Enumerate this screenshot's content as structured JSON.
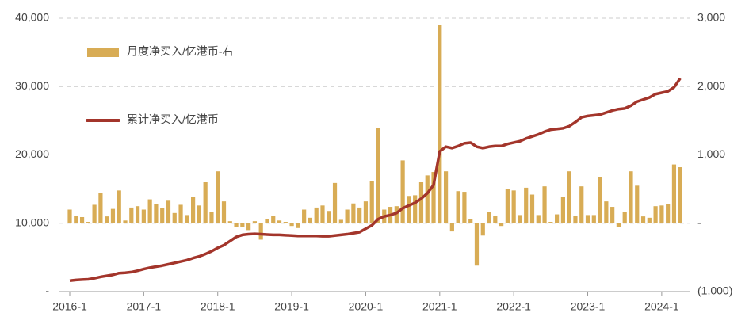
{
  "chart_data": {
    "type": "bar-line",
    "categories": [
      "2016-1",
      null,
      null,
      null,
      null,
      null,
      null,
      null,
      null,
      null,
      null,
      null,
      "2017-1",
      null,
      null,
      null,
      null,
      null,
      null,
      null,
      null,
      null,
      null,
      null,
      "2018-1",
      null,
      null,
      null,
      null,
      null,
      null,
      null,
      null,
      null,
      null,
      null,
      "2019-1",
      null,
      null,
      null,
      null,
      null,
      null,
      null,
      null,
      null,
      null,
      null,
      "2020-1",
      null,
      null,
      null,
      null,
      null,
      null,
      null,
      null,
      null,
      null,
      null,
      "2021-1",
      null,
      null,
      null,
      null,
      null,
      null,
      null,
      null,
      null,
      null,
      null,
      "2022-1",
      null,
      null,
      null,
      null,
      null,
      null,
      null,
      null,
      null,
      null,
      null,
      "2023-1",
      null,
      null,
      null,
      null,
      null,
      null,
      null,
      null,
      null,
      null,
      null,
      "2024-1",
      null,
      null,
      null
    ],
    "series": [
      {
        "name": "月度净买入/亿港币-右",
        "type": "bar",
        "axis": "y2",
        "color": "#d8ac55",
        "values": [
          200,
          110,
          90,
          20,
          270,
          440,
          100,
          210,
          480,
          40,
          230,
          250,
          200,
          350,
          280,
          220,
          330,
          150,
          270,
          120,
          380,
          260,
          600,
          170,
          760,
          320,
          30,
          -50,
          -50,
          -100,
          30,
          -240,
          60,
          110,
          40,
          20,
          -40,
          -70,
          200,
          80,
          230,
          260,
          180,
          590,
          50,
          200,
          290,
          230,
          320,
          620,
          1400,
          200,
          240,
          250,
          920,
          400,
          410,
          600,
          700,
          750,
          2900,
          760,
          -120,
          470,
          460,
          60,
          -620,
          -180,
          170,
          110,
          -40,
          500,
          480,
          120,
          520,
          420,
          120,
          540,
          20,
          130,
          380,
          760,
          110,
          540,
          120,
          120,
          680,
          320,
          240,
          -60,
          160,
          760,
          550,
          100,
          80,
          250,
          260,
          280,
          860,
          820
        ]
      },
      {
        "name": "累计净买入/亿港币",
        "type": "line",
        "axis": "y",
        "color": "#a3352b",
        "values": [
          1600,
          1700,
          1750,
          1800,
          1950,
          2150,
          2300,
          2450,
          2700,
          2750,
          2850,
          3050,
          3300,
          3500,
          3650,
          3800,
          4000,
          4200,
          4400,
          4600,
          4900,
          5150,
          5500,
          5900,
          6400,
          6800,
          7400,
          8000,
          8300,
          8400,
          8450,
          8400,
          8350,
          8300,
          8300,
          8250,
          8200,
          8150,
          8150,
          8150,
          8150,
          8100,
          8100,
          8200,
          8300,
          8400,
          8550,
          8700,
          9200,
          9700,
          10600,
          11000,
          11200,
          11500,
          12200,
          12600,
          13000,
          13600,
          14400,
          15600,
          20500,
          21200,
          21000,
          21300,
          21700,
          21800,
          21200,
          21000,
          21200,
          21300,
          21300,
          21600,
          21800,
          22000,
          22400,
          22700,
          23000,
          23400,
          23700,
          23800,
          23900,
          24200,
          24800,
          25500,
          25700,
          25800,
          25900,
          26200,
          26500,
          26700,
          26800,
          27200,
          27800,
          28100,
          28400,
          28900,
          29100,
          29300,
          29900,
          31200
        ]
      }
    ],
    "ylim": [
      0,
      40000
    ],
    "yticks": [
      {
        "value": 0,
        "label": "-"
      },
      {
        "value": 10000,
        "label": "10,000"
      },
      {
        "value": 20000,
        "label": "20,000"
      },
      {
        "value": 30000,
        "label": "30,000"
      },
      {
        "value": 40000,
        "label": "40,000"
      }
    ],
    "y2lim": [
      -1000,
      3000
    ],
    "y2ticks": [
      {
        "value": -1000,
        "label": "(1,000)"
      },
      {
        "value": 0,
        "label": "-"
      },
      {
        "value": 1000,
        "label": "1,000"
      },
      {
        "value": 2000,
        "label": "2,000"
      },
      {
        "value": 3000,
        "label": "3,000"
      }
    ],
    "grid": true,
    "legend": "upper left"
  }
}
